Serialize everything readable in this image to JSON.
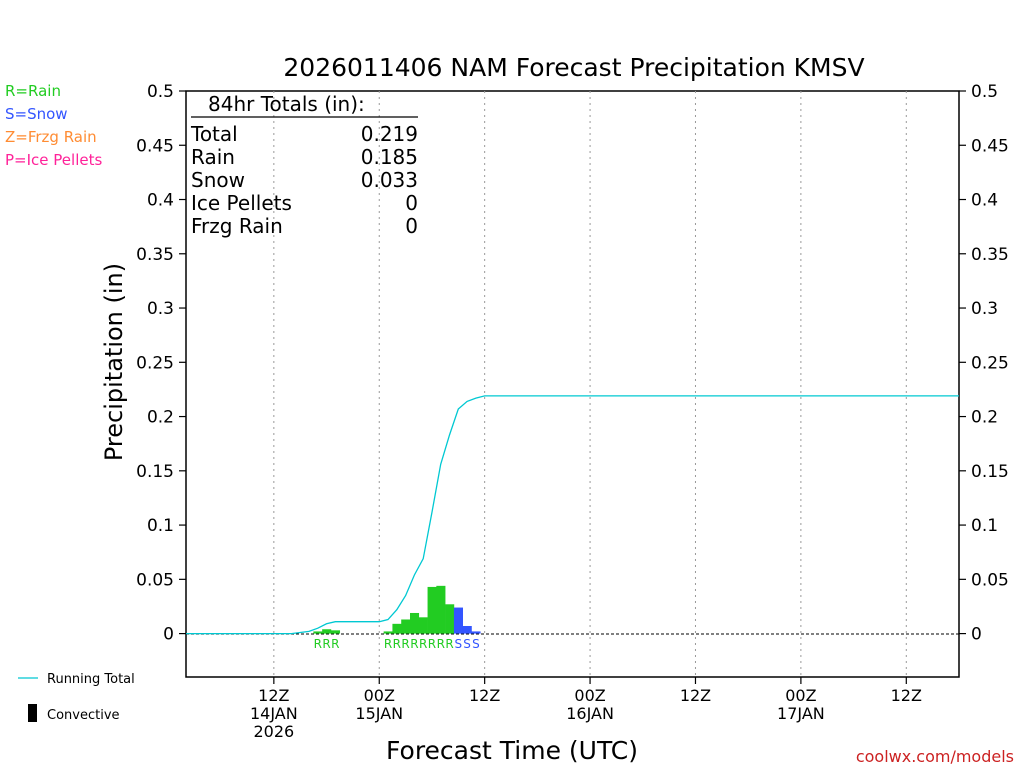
{
  "chart_data": {
    "type": "bar",
    "title": "2026011406 NAM Forecast Precipitation KMSV",
    "xlabel": "Forecast Time (UTC)",
    "ylabel": "Precipitation (in)",
    "ylim": [
      -0.04,
      0.5
    ],
    "xlim_hours": [
      -4,
      84
    ],
    "yticks": [
      "0.5",
      "0.45",
      "0.4",
      "0.35",
      "0.3",
      "0.25",
      "0.2",
      "0.15",
      "0.1",
      "0.05",
      "0"
    ],
    "ytick_values": [
      0.5,
      0.45,
      0.4,
      0.35,
      0.3,
      0.25,
      0.2,
      0.15,
      0.1,
      0.05,
      0
    ],
    "xticks": [
      {
        "hour": 6,
        "line1": "12Z",
        "line2": "14JAN",
        "line3": "2026"
      },
      {
        "hour": 18,
        "line1": "00Z",
        "line2": "15JAN",
        "line3": ""
      },
      {
        "hour": 30,
        "line1": "12Z",
        "line2": "",
        "line3": ""
      },
      {
        "hour": 42,
        "line1": "00Z",
        "line2": "16JAN",
        "line3": ""
      },
      {
        "hour": 54,
        "line1": "12Z",
        "line2": "",
        "line3": ""
      },
      {
        "hour": 66,
        "line1": "00Z",
        "line2": "17JAN",
        "line3": ""
      },
      {
        "hour": 78,
        "line1": "12Z",
        "line2": "",
        "line3": ""
      }
    ],
    "legend_types": [
      {
        "label": "R=Rain",
        "color": "#22cc22"
      },
      {
        "label": "S=Snow",
        "color": "#3355ff"
      },
      {
        "label": "Z=Frzg Rain",
        "color": "#ff8c33"
      },
      {
        "label": "P=Ice Pellets",
        "color": "#ff2299"
      }
    ],
    "legend_series": [
      {
        "label": "Running Total",
        "color": "#00c8d2"
      },
      {
        "label": "Convective",
        "color": "#000000"
      }
    ],
    "totals": {
      "header": "84hr Totals (in):",
      "rows": [
        {
          "label": "Total",
          "value": "0.219"
        },
        {
          "label": "Rain",
          "value": "0.185"
        },
        {
          "label": "Snow",
          "value": "0.033"
        },
        {
          "label": "Ice Pellets",
          "value": "0"
        },
        {
          "label": "Frzg Rain",
          "value": "0"
        }
      ]
    },
    "bars": [
      {
        "hour": 11,
        "value": 0.002,
        "type": "R"
      },
      {
        "hour": 12,
        "value": 0.004,
        "type": "R"
      },
      {
        "hour": 13,
        "value": 0.003,
        "type": "R"
      },
      {
        "hour": 19,
        "value": 0.002,
        "type": "R"
      },
      {
        "hour": 20,
        "value": 0.009,
        "type": "R"
      },
      {
        "hour": 21,
        "value": 0.013,
        "type": "R"
      },
      {
        "hour": 22,
        "value": 0.019,
        "type": "R"
      },
      {
        "hour": 23,
        "value": 0.015,
        "type": "R"
      },
      {
        "hour": 24,
        "value": 0.043,
        "type": "R"
      },
      {
        "hour": 25,
        "value": 0.044,
        "type": "R"
      },
      {
        "hour": 26,
        "value": 0.027,
        "type": "R"
      },
      {
        "hour": 27,
        "value": 0.024,
        "type": "S"
      },
      {
        "hour": 28,
        "value": 0.007,
        "type": "S"
      },
      {
        "hour": 29,
        "value": 0.002,
        "type": "S"
      }
    ],
    "running_total": {
      "hours": [
        -4,
        8,
        9,
        10,
        11,
        12,
        13,
        14,
        15,
        16,
        17,
        18,
        19,
        20,
        21,
        22,
        23,
        24,
        25,
        26,
        27,
        28,
        29,
        30,
        84
      ],
      "values": [
        0,
        0,
        0.001,
        0.002,
        0.005,
        0.009,
        0.011,
        0.011,
        0.011,
        0.011,
        0.011,
        0.011,
        0.013,
        0.022,
        0.035,
        0.054,
        0.069,
        0.112,
        0.156,
        0.183,
        0.207,
        0.214,
        0.217,
        0.219,
        0.219
      ]
    },
    "source": "coolwx.com/models"
  }
}
